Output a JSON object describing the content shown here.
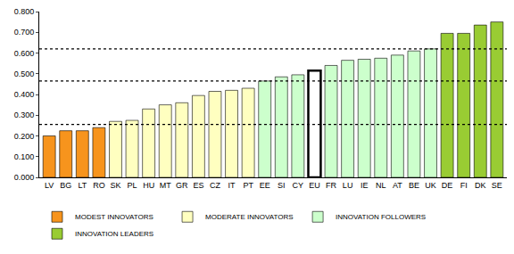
{
  "chart_data": {
    "type": "bar",
    "categories": [
      "LV",
      "BG",
      "LT",
      "RO",
      "SK",
      "PL",
      "HU",
      "MT",
      "GR",
      "ES",
      "CZ",
      "IT",
      "PT",
      "EE",
      "SI",
      "CY",
      "EU",
      "FR",
      "LU",
      "IE",
      "NL",
      "AT",
      "BE",
      "UK",
      "DE",
      "FI",
      "DK",
      "SE"
    ],
    "series": [
      {
        "name": "MODEST INNOVATORS",
        "color": "#f7941d",
        "values": [
          0.2,
          0.225,
          0.225,
          0.24,
          null,
          null,
          null,
          null,
          null,
          null,
          null,
          null,
          null,
          null,
          null,
          null,
          null,
          null,
          null,
          null,
          null,
          null,
          null,
          null,
          null,
          null,
          null,
          null
        ]
      },
      {
        "name": "MODERATE INNOVATORS",
        "color": "#ffffc0",
        "values": [
          null,
          null,
          null,
          null,
          0.27,
          0.275,
          0.33,
          0.35,
          0.36,
          0.395,
          0.415,
          0.42,
          0.43,
          null,
          null,
          null,
          null,
          null,
          null,
          null,
          null,
          null,
          null,
          null,
          null,
          null,
          null,
          null
        ]
      },
      {
        "name": "INNOVATION FOLLOWERS",
        "color": "#ccffcc",
        "values": [
          null,
          null,
          null,
          null,
          null,
          null,
          null,
          null,
          null,
          null,
          null,
          null,
          null,
          0.465,
          0.485,
          0.495,
          null,
          0.54,
          0.565,
          0.57,
          0.575,
          0.59,
          0.61,
          0.62,
          null,
          null,
          null,
          null
        ]
      },
      {
        "color": "#ffffff",
        "values": [
          null,
          null,
          null,
          null,
          null,
          null,
          null,
          null,
          null,
          null,
          null,
          null,
          null,
          null,
          null,
          null,
          0.515,
          null,
          null,
          null,
          null,
          null,
          null,
          null,
          null,
          null,
          null,
          null
        ]
      },
      {
        "name": "INNOVATION LEADERS",
        "color": "#99cc33",
        "values": [
          null,
          null,
          null,
          null,
          null,
          null,
          null,
          null,
          null,
          null,
          null,
          null,
          null,
          null,
          null,
          null,
          null,
          null,
          null,
          null,
          null,
          null,
          null,
          null,
          0.695,
          0.695,
          0.735,
          0.75
        ]
      }
    ],
    "reference_lines": [
      0.255,
      0.465,
      0.62
    ],
    "ylim": [
      0,
      0.8
    ],
    "yticks": [
      {
        "value": 0,
        "label": "0.000"
      },
      {
        "value": 0.1,
        "label": "0.100"
      },
      {
        "value": 0.2,
        "label": "0.200"
      },
      {
        "value": 0.3,
        "label": "0.300"
      },
      {
        "value": 0.4,
        "label": "0.400"
      },
      {
        "value": 0.5,
        "label": "0.500"
      },
      {
        "value": 0.6,
        "label": "0.600"
      },
      {
        "value": 0.7,
        "label": "0.700"
      },
      {
        "value": 0.8,
        "label": "0.800"
      }
    ],
    "grid": false,
    "legend": "bottom"
  }
}
